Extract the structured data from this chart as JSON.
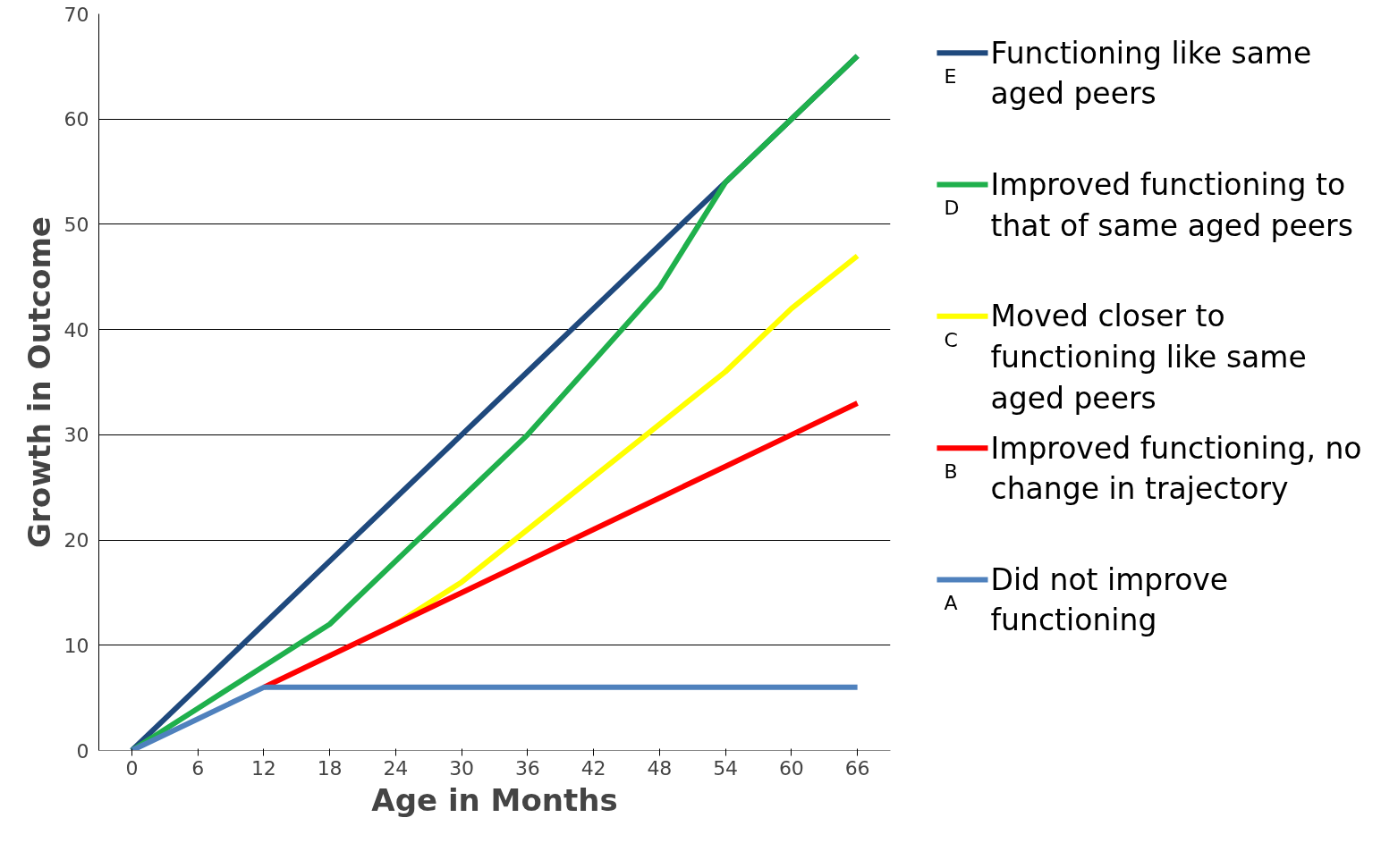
{
  "chart_data": {
    "type": "line",
    "xlabel": "Age in Months",
    "ylabel": "Growth in Outcome",
    "categories": [
      "0",
      "6",
      "12",
      "18",
      "24",
      "30",
      "36",
      "42",
      "48",
      "54",
      "60",
      "66"
    ],
    "ylim": [
      0,
      70
    ],
    "yticks": [
      0,
      10,
      20,
      30,
      40,
      50,
      60,
      70
    ],
    "grid": "y",
    "legend": "right",
    "line_style": "solid",
    "annotations": [
      "E",
      "D",
      "C",
      "B",
      "A"
    ],
    "series": [
      {
        "name": "Functioning like same aged peers",
        "color": "#1f497d",
        "values": [
          0,
          6,
          12,
          18,
          24,
          30,
          36,
          42,
          48,
          54,
          60,
          66
        ]
      },
      {
        "name": "Improved functioning to that of same aged peers",
        "color": "#1fb04c",
        "values": [
          0,
          4,
          8,
          12,
          18,
          24,
          30,
          37,
          44,
          54,
          60,
          66
        ]
      },
      {
        "name": "Moved closer to functioning like same aged peers",
        "color": "#ffff00",
        "values": [
          null,
          null,
          null,
          null,
          12,
          16,
          21,
          26,
          31,
          36,
          42,
          47
        ]
      },
      {
        "name": "Improved functioning, no change in trajectory",
        "color": "#ff0000",
        "values": [
          null,
          null,
          6,
          9,
          12,
          15,
          18,
          21,
          24,
          27,
          30,
          33
        ]
      },
      {
        "name": "Did not improve functioning",
        "color": "#4f81bd",
        "values": [
          0,
          3,
          6,
          6,
          6,
          6,
          6,
          6,
          6,
          6,
          6,
          6
        ]
      }
    ]
  }
}
